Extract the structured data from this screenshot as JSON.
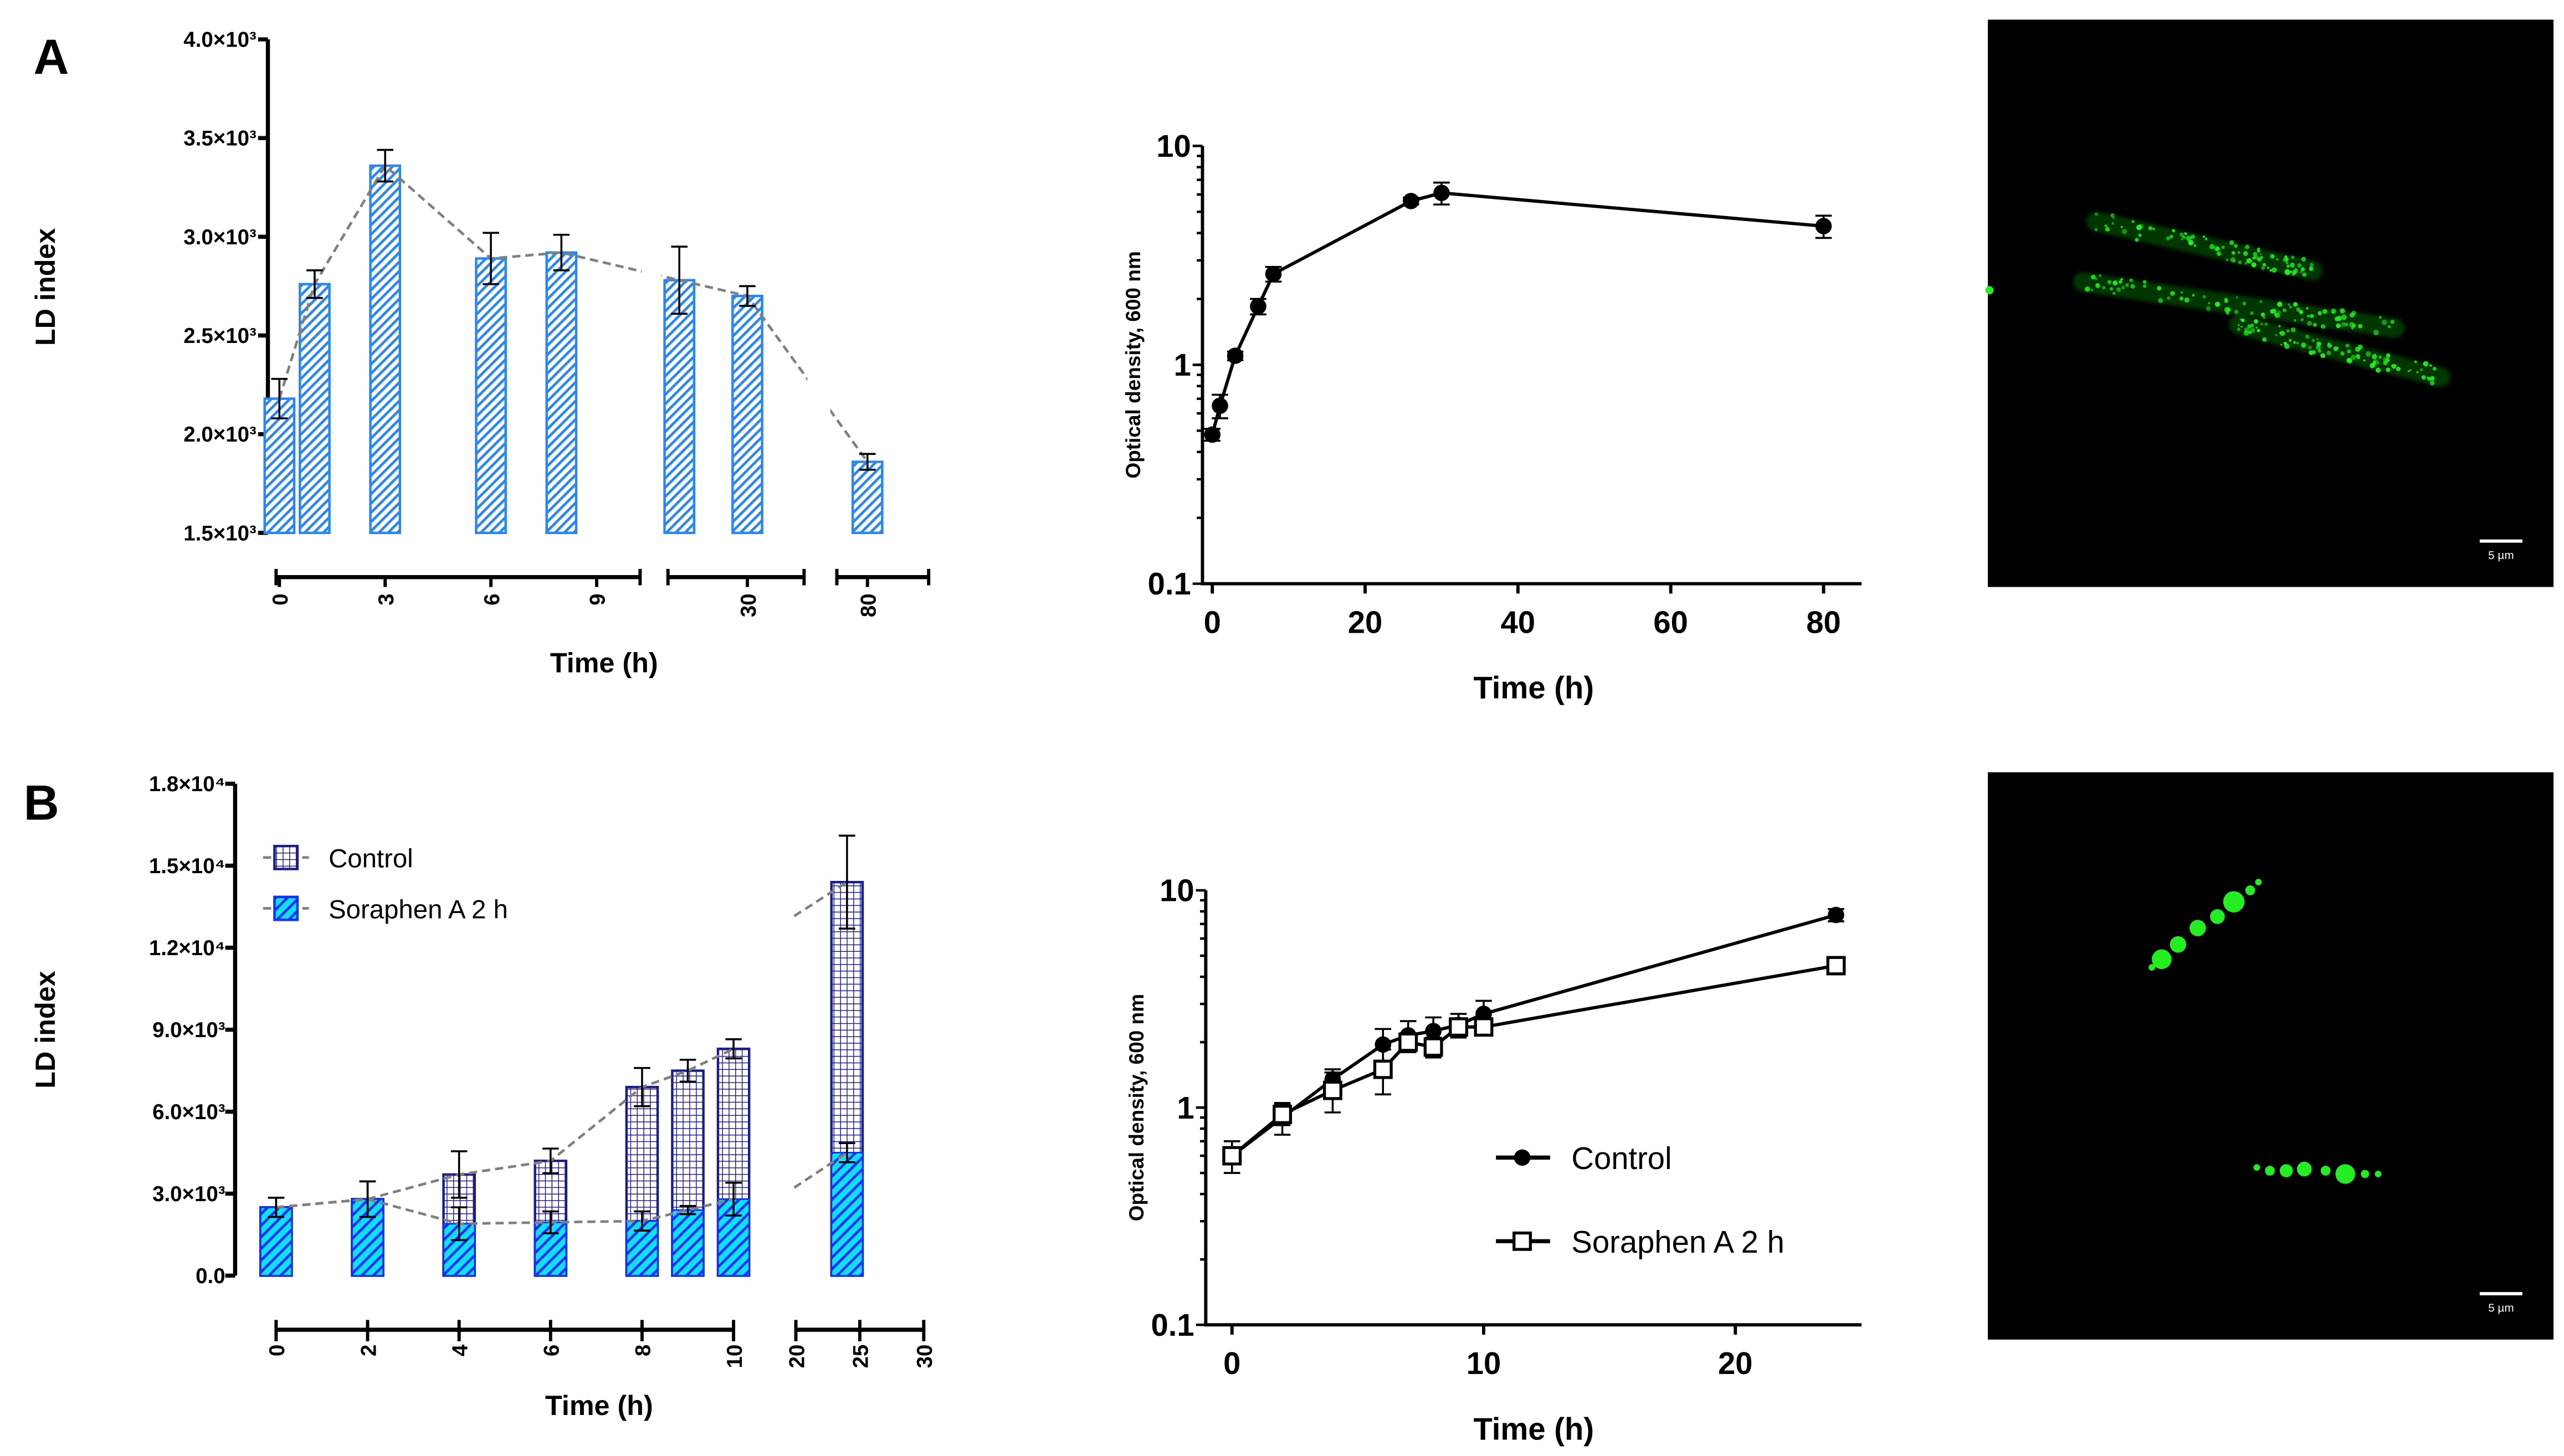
{
  "panel_labels": [
    "A",
    "B"
  ],
  "colors": {
    "panelA_bar": "#2a86f0",
    "control_grid": "#1c1c8a",
    "soraphen_fill": "#10e0f5",
    "soraphen_hatch": "#1030ff",
    "trend_line": "#808080",
    "fluorescence": "#22ee22",
    "micrograph_bg": "#000000"
  },
  "chart_data": [
    {
      "id": "A-bar",
      "type": "bar",
      "ylabel": "LD index",
      "xlabel": "Time (h)",
      "ylim": [
        1500,
        4000
      ],
      "yticks": [
        1500,
        2000,
        2500,
        3000,
        3500,
        4000
      ],
      "ytick_labels": [
        "1.5×10³",
        "2.0×10³",
        "2.5×10³",
        "3.0×10³",
        "3.5×10³",
        "4.0×10³"
      ],
      "broken_x_axis": [
        [
          0,
          10
        ],
        [
          23,
          35
        ],
        [
          75,
          90
        ]
      ],
      "xticks": [
        0,
        3,
        6,
        9,
        30,
        80
      ],
      "xtick_labels": [
        "0",
        "3",
        "6",
        "9",
        "30",
        "80"
      ],
      "x": [
        0,
        1,
        3,
        6,
        8,
        24,
        30,
        80
      ],
      "values": [
        2180,
        2760,
        3360,
        2890,
        2920,
        2780,
        2700,
        1860
      ],
      "errors": [
        100,
        70,
        80,
        130,
        90,
        170,
        50,
        40
      ],
      "trend_line": "dashed",
      "pattern": "diagonal hatch"
    },
    {
      "id": "A-line",
      "type": "line",
      "ylabel": "Optical density, 600 nm",
      "xlabel": "Time (h)",
      "yscale": "log",
      "ylim": [
        0.1,
        10
      ],
      "ytick_labels": [
        "0.1",
        "1",
        "10"
      ],
      "xlim": [
        0,
        85
      ],
      "xticks": [
        0,
        20,
        40,
        60,
        80
      ],
      "xtick_labels": [
        "0",
        "20",
        "40",
        "60",
        "80"
      ],
      "x": [
        0,
        1,
        3,
        6,
        8,
        26,
        30,
        80
      ],
      "values": [
        0.48,
        0.65,
        1.1,
        1.85,
        2.6,
        5.6,
        6.1,
        4.3
      ],
      "errors": [
        0.03,
        0.08,
        0.05,
        0.15,
        0.2,
        0.2,
        0.7,
        0.5
      ],
      "marker": "filled-circle"
    },
    {
      "id": "B-bar",
      "type": "bar",
      "ylabel": "LD index",
      "xlabel": "Time (h)",
      "ylim": [
        0,
        18000
      ],
      "yticks": [
        0,
        3000,
        6000,
        9000,
        12000,
        15000,
        18000
      ],
      "ytick_labels": [
        "0.0",
        "3.0×10³",
        "6.0×10³",
        "9.0×10³",
        "1.2×10⁴",
        "1.5×10⁴",
        "1.8×10⁴"
      ],
      "broken_x_axis": [
        [
          0,
          10
        ],
        [
          20,
          30
        ]
      ],
      "xticks": [
        0,
        2,
        4,
        6,
        8,
        10,
        20,
        25,
        30
      ],
      "xtick_labels": [
        "0",
        "2",
        "4",
        "6",
        "8",
        "10",
        "20",
        "25",
        "30"
      ],
      "x": [
        0,
        2,
        4,
        6,
        8,
        9,
        10,
        24
      ],
      "series": [
        {
          "name": "Control",
          "values": [
            2500,
            2800,
            3700,
            4200,
            6900,
            7500,
            8300,
            14400
          ],
          "errors": [
            350,
            650,
            850,
            450,
            700,
            400,
            350,
            1700
          ],
          "pattern": "grid"
        },
        {
          "name": "Soraphen A 2 h",
          "values": [
            2500,
            2800,
            1900,
            1950,
            2000,
            2400,
            2800,
            4500
          ],
          "errors": [
            350,
            650,
            600,
            400,
            350,
            150,
            600,
            350
          ],
          "pattern": "diagonal hatch"
        }
      ],
      "legend_position": "top-left",
      "trend_line": "dashed"
    },
    {
      "id": "B-line",
      "type": "line",
      "ylabel": "Optical density, 600 nm",
      "xlabel": "Time (h)",
      "yscale": "log",
      "ylim": [
        0.1,
        10
      ],
      "ytick_labels": [
        "0.1",
        "1",
        "10"
      ],
      "xlim": [
        -1,
        25
      ],
      "xticks": [
        0,
        10,
        20
      ],
      "xtick_labels": [
        "0",
        "10",
        "20"
      ],
      "x": [
        0,
        2,
        4,
        6,
        7,
        8,
        9,
        10,
        24
      ],
      "series": [
        {
          "name": "Control",
          "marker": "filled-circle",
          "values": [
            0.6,
            0.9,
            1.35,
            1.95,
            2.15,
            2.25,
            2.4,
            2.7,
            7.7
          ],
          "errors": [
            0.1,
            0.15,
            0.15,
            0.35,
            0.35,
            0.35,
            0.3,
            0.4,
            0.5
          ]
        },
        {
          "name": "Soraphen A  2 h",
          "marker": "open-square",
          "values": [
            0.6,
            0.93,
            1.2,
            1.5,
            2.0,
            1.9,
            2.35,
            2.35,
            4.5
          ],
          "errors": [
            0.1,
            0.1,
            0.25,
            0.35,
            0.2,
            0.2,
            0.2,
            0.2,
            0.1
          ]
        }
      ],
      "legend_position": "bottom-right"
    }
  ],
  "micrographs": [
    {
      "id": "A-image",
      "scale_bar": "5 µm"
    },
    {
      "id": "B-image",
      "scale_bar": "5 µm"
    }
  ]
}
